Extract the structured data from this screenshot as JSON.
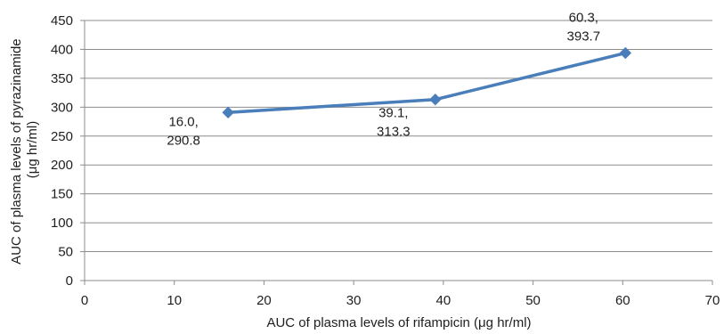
{
  "chart_data": {
    "type": "line",
    "title": "",
    "xlabel": "AUC of plasma levels of rifampicin (μg hr/ml)",
    "ylabel_lines": [
      "AUC of plasma levels of pyrazinamide",
      "(μg hr/ml)"
    ],
    "xlim": [
      0,
      70
    ],
    "ylim": [
      0,
      450
    ],
    "x_ticks": [
      "0",
      "10",
      "20",
      "30",
      "40",
      "50",
      "60",
      "70"
    ],
    "y_ticks": [
      "0",
      "50",
      "100",
      "150",
      "200",
      "250",
      "300",
      "350",
      "400",
      "450"
    ],
    "grid": "horizontal",
    "legend": "none",
    "series": [
      {
        "color": "#4a7ebb",
        "marker": "diamond",
        "points": [
          {
            "x": 16.0,
            "y": 290.8,
            "label_lines": [
              "16.0,",
              "290.8"
            ]
          },
          {
            "x": 39.1,
            "y": 313.3,
            "label_lines": [
              "39.1,",
              "313.3"
            ]
          },
          {
            "x": 60.3,
            "y": 393.7,
            "label_lines": [
              "60.3,",
              "393.7"
            ]
          }
        ]
      }
    ]
  }
}
